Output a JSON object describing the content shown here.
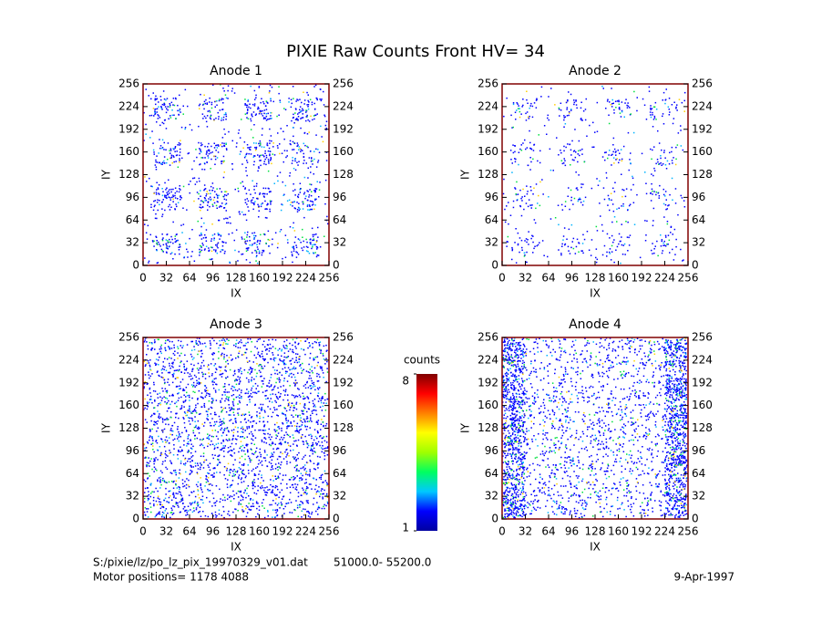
{
  "title": "PIXIE Raw Counts Front HV= 34",
  "chart_data": [
    {
      "type": "heatmap",
      "title": "Anode 1",
      "x_label": "IX",
      "y_label": "IY",
      "xlim": [
        0,
        256
      ],
      "ylim": [
        0,
        256
      ],
      "y2lim": [
        0,
        256
      ],
      "xticks": [
        0,
        32,
        64,
        96,
        128,
        160,
        192,
        224,
        256
      ],
      "yticks": [
        0,
        32,
        64,
        96,
        128,
        160,
        192,
        224,
        256
      ],
      "y2ticks": [
        0,
        32,
        64,
        96,
        128,
        160,
        192,
        224,
        256
      ]
    },
    {
      "type": "heatmap",
      "title": "Anode 2",
      "x_label": "IX",
      "y_label": "IY",
      "xlim": [
        0,
        256
      ],
      "ylim": [
        0,
        256
      ],
      "y2lim": [
        0,
        256
      ],
      "xticks": [
        0,
        32,
        64,
        96,
        128,
        160,
        192,
        224,
        256
      ],
      "yticks": [
        0,
        32,
        64,
        96,
        128,
        160,
        192,
        224,
        256
      ],
      "y2ticks": [
        0,
        32,
        64,
        96,
        128,
        160,
        192,
        224,
        256
      ]
    },
    {
      "type": "heatmap",
      "title": "Anode 3",
      "x_label": "IX",
      "y_label": "IY",
      "xlim": [
        0,
        256
      ],
      "ylim": [
        0,
        256
      ],
      "y2lim": [
        0,
        256
      ],
      "xticks": [
        0,
        32,
        64,
        96,
        128,
        160,
        192,
        224,
        256
      ],
      "yticks": [
        0,
        32,
        64,
        96,
        128,
        160,
        192,
        224,
        256
      ],
      "y2ticks": [
        0,
        32,
        64,
        96,
        128,
        160,
        192,
        224,
        256
      ]
    },
    {
      "type": "heatmap",
      "title": "Anode 4",
      "x_label": "IX",
      "y_label": "IY",
      "xlim": [
        0,
        256
      ],
      "ylim": [
        0,
        256
      ],
      "y2lim": [
        0,
        256
      ],
      "xticks": [
        0,
        32,
        64,
        96,
        128,
        160,
        192,
        224,
        256
      ],
      "yticks": [
        0,
        32,
        64,
        96,
        128,
        160,
        192,
        224,
        256
      ],
      "y2ticks": [
        0,
        32,
        64,
        96,
        128,
        160,
        192,
        224,
        256
      ]
    },
    {
      "type": "colorbar",
      "title": "counts",
      "ylim": [
        1,
        8
      ],
      "yticks": [
        1,
        8
      ],
      "colors": [
        "#0000a0",
        "#0000ff",
        "#00c8ff",
        "#00ff60",
        "#a0ff00",
        "#ffff00",
        "#ff8000",
        "#ff0000",
        "#800000"
      ]
    }
  ],
  "footer": {
    "file": "S:/pixie/lz/po_lz_pix_19970329_v01.dat",
    "range": "51000.0- 55200.0",
    "motor": "Motor positions= 1178 4088",
    "date": "9-Apr-1997"
  }
}
